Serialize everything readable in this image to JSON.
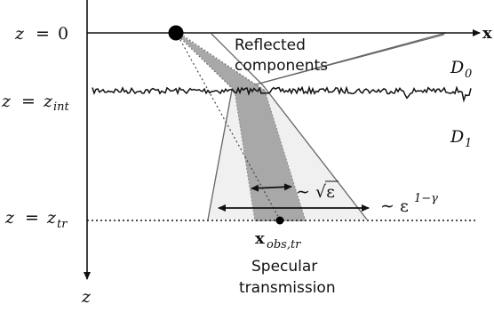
{
  "axes": {
    "x_label": "x",
    "z_label": "z"
  },
  "levels": {
    "z0": {
      "lhs": "z",
      "eq": "=",
      "rhs": "0"
    },
    "zint": {
      "lhs": "z",
      "eq": "=",
      "rhs": "z",
      "sub": "int"
    },
    "ztr": {
      "lhs": "z",
      "eq": "=",
      "rhs": "z",
      "sub": "tr"
    }
  },
  "domains": {
    "d0": {
      "letter": "D",
      "sub": "0"
    },
    "d1": {
      "letter": "D",
      "sub": "1"
    }
  },
  "annotations": {
    "reflected_line1": "Reflected",
    "reflected_line2": "components",
    "sqrt_eps": "∼ √ε",
    "eps_pow_prefix": "∼ ε",
    "eps_pow_exp": "1−γ",
    "obs_point": "x",
    "obs_point_sub": "obs,tr",
    "specular_line1": "Specular",
    "specular_line2": "transmission"
  },
  "colors": {
    "outer_cone": "#f0f0f0",
    "inner_beam": "#a8a8a8",
    "lines": "#666666",
    "ink": "#111111"
  }
}
